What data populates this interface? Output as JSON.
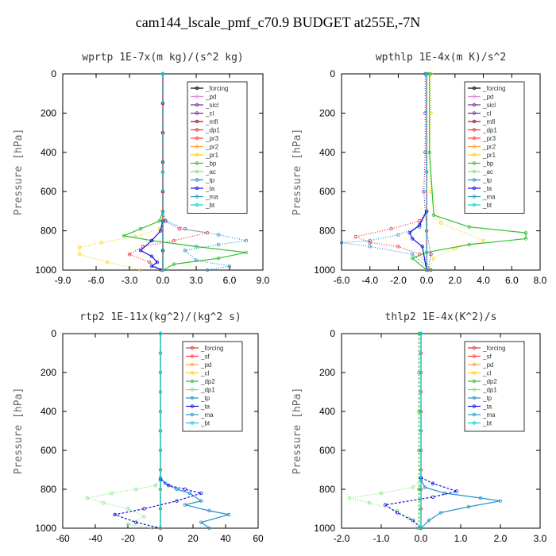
{
  "title": "cam144_lscale_pmf_c70.9  BUDGET at255E,-7N",
  "chart_data": [
    {
      "type": "line",
      "title": "wprtp  1E-7x(m kg)/(s^2 kg)",
      "ylabel": "Pressure [hPa]",
      "xlim": [
        -9,
        9
      ],
      "ylim": [
        1000,
        0
      ],
      "xticks": [
        "-9.0",
        "-6.0",
        "-3.0",
        "0.0",
        "3.0",
        "6.0",
        "9.0"
      ],
      "yticks": [
        "0",
        "200",
        "400",
        "600",
        "800",
        "1000"
      ],
      "legend_position": "top-right",
      "series": [
        {
          "name": "_forcing",
          "color": "#000000",
          "x": [
            0,
            0,
            0,
            0,
            0,
            0,
            0,
            0
          ],
          "y": [
            0,
            150,
            300,
            450,
            600,
            750,
            900,
            1000
          ]
        },
        {
          "name": "_pd",
          "color": "#e08ee0",
          "x": [
            0,
            0,
            0
          ],
          "y": [
            0,
            500,
            1000
          ]
        },
        {
          "name": "_sicl",
          "color": "#7030a0",
          "x": [
            0,
            0,
            0
          ],
          "y": [
            0,
            500,
            1000
          ]
        },
        {
          "name": "_cl",
          "color": "#6b2fa0",
          "x": [
            0,
            0,
            0
          ],
          "y": [
            0,
            500,
            1000
          ]
        },
        {
          "name": "_mfl",
          "color": "#a0003a",
          "x": [
            0,
            0,
            0
          ],
          "y": [
            0,
            500,
            1000
          ]
        },
        {
          "name": "_dp1",
          "color": "#e83030",
          "x": [
            0,
            0.2,
            1.5,
            4,
            1,
            -1.8,
            -3,
            -1.2,
            -0.2
          ],
          "y": [
            700,
            750,
            790,
            810,
            850,
            880,
            920,
            960,
            1000
          ]
        },
        {
          "name": "_pr3",
          "color": "#ff4040",
          "x": [
            0,
            0,
            0
          ],
          "y": [
            0,
            500,
            1000
          ]
        },
        {
          "name": "_pr2",
          "color": "#ffa040",
          "x": [
            0,
            0,
            0
          ],
          "y": [
            0,
            500,
            1000
          ]
        },
        {
          "name": "_pr1",
          "color": "#ffd000",
          "x": [
            0,
            -0.3,
            -2.5,
            -5.5,
            -7.5,
            -7.5,
            -5,
            -2
          ],
          "y": [
            750,
            790,
            830,
            860,
            885,
            920,
            960,
            1000
          ]
        },
        {
          "name": "_bp",
          "color": "#30c030",
          "x": [
            0,
            -0.3,
            -2,
            -3.5,
            -1,
            3,
            7.5,
            5,
            1,
            0
          ],
          "y": [
            700,
            750,
            790,
            825,
            850,
            880,
            910,
            940,
            970,
            1000
          ]
        },
        {
          "name": "_ac",
          "color": "#80e080",
          "x": [
            0,
            0,
            0
          ],
          "y": [
            0,
            500,
            1000
          ]
        },
        {
          "name": "_tp",
          "color": "#2090d0",
          "x": [
            0,
            0.3,
            2,
            5,
            7.5,
            5,
            2,
            3,
            6,
            4
          ],
          "y": [
            700,
            750,
            790,
            820,
            850,
            870,
            900,
            950,
            980,
            1000
          ]
        },
        {
          "name": "_ta",
          "color": "#1010e0",
          "x": [
            0,
            -0.2,
            -1,
            -2,
            -1,
            -0.5,
            -1,
            0
          ],
          "y": [
            750,
            800,
            850,
            900,
            930,
            960,
            980,
            1000
          ]
        },
        {
          "name": "_ma",
          "color": "#20a0c0",
          "x": [
            0,
            0,
            0
          ],
          "y": [
            0,
            500,
            1000
          ]
        },
        {
          "name": "_bt",
          "color": "#00d0e0",
          "x": [
            0,
            0,
            0
          ],
          "y": [
            0,
            500,
            1000
          ]
        }
      ]
    },
    {
      "type": "line",
      "title": "wpthlp  1E-4x(m K)/s^2",
      "ylabel": "Pressure [hPa]",
      "xlim": [
        -6,
        8
      ],
      "ylim": [
        1000,
        0
      ],
      "xticks": [
        "-6.0",
        "-4.0",
        "-2.0",
        "0.0",
        "2.0",
        "4.0",
        "6.0",
        "8.0"
      ],
      "yticks": [
        "0",
        "200",
        "400",
        "600",
        "800",
        "1000"
      ],
      "legend_position": "top-right",
      "series": [
        {
          "name": "_forcing",
          "color": "#000000",
          "x": [
            0,
            0,
            0
          ],
          "y": [
            0,
            500,
            1000
          ]
        },
        {
          "name": "_pd",
          "color": "#e08ee0",
          "x": [
            0,
            0,
            0
          ],
          "y": [
            0,
            500,
            1000
          ]
        },
        {
          "name": "_sicl",
          "color": "#7030a0",
          "x": [
            -0.1,
            -0.1,
            -0.1,
            -0.2,
            0,
            0.3,
            0.1
          ],
          "y": [
            0,
            200,
            400,
            600,
            800,
            920,
            1000
          ]
        },
        {
          "name": "_cl",
          "color": "#6b2fa0",
          "x": [
            0,
            0,
            0
          ],
          "y": [
            0,
            500,
            1000
          ]
        },
        {
          "name": "_mfl",
          "color": "#a0003a",
          "x": [
            0,
            0,
            0
          ],
          "y": [
            0,
            500,
            1000
          ]
        },
        {
          "name": "_dp1",
          "color": "#e83030",
          "x": [
            0,
            -0.5,
            -2.5,
            -5,
            -4,
            -2,
            -0.5,
            0.3
          ],
          "y": [
            700,
            750,
            790,
            830,
            860,
            880,
            920,
            1000
          ]
        },
        {
          "name": "_pr3",
          "color": "#ff4040",
          "x": [
            0,
            0,
            0
          ],
          "y": [
            0,
            500,
            1000
          ]
        },
        {
          "name": "_pr2",
          "color": "#ffa040",
          "x": [
            0,
            0,
            0
          ],
          "y": [
            0,
            500,
            1000
          ]
        },
        {
          "name": "_pr1",
          "color": "#ffd000",
          "x": [
            0.3,
            0.3,
            0.2,
            0.3,
            1,
            4,
            2,
            0.5,
            0.2
          ],
          "y": [
            0,
            200,
            400,
            600,
            760,
            850,
            890,
            940,
            1000
          ]
        },
        {
          "name": "_bp",
          "color": "#30c030",
          "x": [
            0.2,
            0.2,
            0.5,
            3,
            7,
            7,
            3,
            0,
            -1,
            0
          ],
          "y": [
            0,
            400,
            720,
            780,
            810,
            840,
            870,
            910,
            940,
            1000
          ]
        },
        {
          "name": "_ac",
          "color": "#80e080",
          "x": [
            0,
            0,
            0
          ],
          "y": [
            0,
            500,
            1000
          ]
        },
        {
          "name": "_tp",
          "color": "#2090d0",
          "x": [
            0,
            -0.5,
            -2,
            -4,
            -6,
            -4,
            -1,
            0.3
          ],
          "y": [
            700,
            780,
            820,
            850,
            860,
            880,
            920,
            1000
          ]
        },
        {
          "name": "_ta",
          "color": "#1010e0",
          "x": [
            0,
            -0.5,
            -1.2,
            -1,
            -0.3,
            0
          ],
          "y": [
            700,
            770,
            810,
            840,
            880,
            1000
          ]
        },
        {
          "name": "_ma",
          "color": "#20a0c0",
          "x": [
            0,
            0,
            0
          ],
          "y": [
            0,
            500,
            1000
          ]
        },
        {
          "name": "_bt",
          "color": "#00d0e0",
          "x": [
            0,
            0,
            0
          ],
          "y": [
            0,
            500,
            1000
          ]
        }
      ]
    },
    {
      "type": "line",
      "title": "rtp2  1E-11x(kg^2)/(kg^2 s)",
      "ylabel": "Pressure [hPa]",
      "xlim": [
        -60,
        60
      ],
      "ylim": [
        1000,
        0
      ],
      "xticks": [
        "-60",
        "-40",
        "-20",
        "0",
        "20",
        "40",
        "60"
      ],
      "yticks": [
        "0",
        "200",
        "400",
        "600",
        "800",
        "1000"
      ],
      "legend_position": "top-right",
      "series": [
        {
          "name": "_forcing",
          "color": "#e83030",
          "x": [
            0,
            0,
            0,
            0,
            0,
            0,
            0,
            0,
            0,
            0,
            0
          ],
          "y": [
            0,
            100,
            200,
            300,
            400,
            500,
            600,
            700,
            800,
            900,
            1000
          ]
        },
        {
          "name": "_sf",
          "color": "#ff4040",
          "x": [
            0,
            0,
            0
          ],
          "y": [
            0,
            500,
            1000
          ]
        },
        {
          "name": "_pd",
          "color": "#ffa040",
          "x": [
            0,
            0,
            0
          ],
          "y": [
            0,
            500,
            1000
          ]
        },
        {
          "name": "_cl",
          "color": "#ffd000",
          "x": [
            0,
            0,
            0
          ],
          "y": [
            0,
            500,
            1000
          ]
        },
        {
          "name": "_dp2",
          "color": "#30c030",
          "x": [
            0,
            0,
            0
          ],
          "y": [
            0,
            500,
            1000
          ]
        },
        {
          "name": "_dp1",
          "color": "#80e080",
          "x": [
            0,
            -3,
            -15,
            -30,
            -45,
            -35,
            -20,
            -10,
            -20,
            -5
          ],
          "y": [
            750,
            780,
            800,
            820,
            845,
            870,
            900,
            940,
            980,
            1000
          ]
        },
        {
          "name": "_tp",
          "color": "#2090d0",
          "x": [
            0,
            3,
            10,
            18,
            25,
            15,
            30,
            42,
            25,
            30
          ],
          "y": [
            740,
            770,
            800,
            820,
            860,
            880,
            910,
            930,
            970,
            1000
          ]
        },
        {
          "name": "_ta",
          "color": "#1010e0",
          "x": [
            0,
            5,
            15,
            25,
            10,
            -10,
            -28,
            -15,
            0
          ],
          "y": [
            750,
            780,
            800,
            820,
            860,
            900,
            930,
            970,
            1000
          ]
        },
        {
          "name": "_ma",
          "color": "#20a0c0",
          "x": [
            0,
            0,
            0
          ],
          "y": [
            0,
            500,
            1000
          ]
        },
        {
          "name": "_bt",
          "color": "#00d0e0",
          "x": [
            0,
            0,
            0
          ],
          "y": [
            0,
            500,
            1000
          ]
        }
      ]
    },
    {
      "type": "line",
      "title": "thlp2  1E-4x(K^2)/s",
      "ylabel": "Pressure [hPa]",
      "xlim": [
        -2,
        3
      ],
      "ylim": [
        1000,
        0
      ],
      "xticks": [
        "-2.0",
        "-1.0",
        "0.0",
        "1.0",
        "2.0",
        "3.0"
      ],
      "yticks": [
        "0",
        "200",
        "400",
        "600",
        "800",
        "1000"
      ],
      "legend_position": "top-right",
      "series": [
        {
          "name": "_forcing",
          "color": "#e83030",
          "x": [
            0,
            0,
            0,
            0,
            0,
            0,
            0,
            0,
            0,
            0,
            0
          ],
          "y": [
            0,
            100,
            200,
            300,
            400,
            500,
            600,
            700,
            800,
            900,
            1000
          ]
        },
        {
          "name": "_sf",
          "color": "#ff4040",
          "x": [
            0,
            0,
            0
          ],
          "y": [
            0,
            500,
            1000
          ]
        },
        {
          "name": "_pd",
          "color": "#ffa040",
          "x": [
            0,
            0,
            0
          ],
          "y": [
            0,
            500,
            1000
          ]
        },
        {
          "name": "_cl",
          "color": "#ffd000",
          "x": [
            0,
            0,
            0
          ],
          "y": [
            0,
            500,
            1000
          ]
        },
        {
          "name": "_dp2",
          "color": "#30c030",
          "x": [
            -0.05,
            -0.05,
            -0.05,
            -0.05,
            -0.05,
            -0.05
          ],
          "y": [
            0,
            200,
            400,
            600,
            800,
            1000
          ]
        },
        {
          "name": "_dp1",
          "color": "#80e080",
          "x": [
            0,
            -0.2,
            -1,
            -1.8,
            -1.3,
            -0.6,
            -0.3,
            -0.1
          ],
          "y": [
            750,
            790,
            820,
            845,
            870,
            910,
            950,
            1000
          ]
        },
        {
          "name": "_tp",
          "color": "#2090d0",
          "x": [
            0,
            0.1,
            0.6,
            1.5,
            2,
            1.2,
            0.5,
            0.2,
            0
          ],
          "y": [
            750,
            790,
            820,
            845,
            860,
            890,
            920,
            960,
            1000
          ]
        },
        {
          "name": "_ta",
          "color": "#1010e0",
          "x": [
            0,
            0.3,
            0.9,
            0.3,
            -0.9,
            -0.6,
            -0.2,
            0
          ],
          "y": [
            740,
            770,
            810,
            840,
            880,
            920,
            960,
            1000
          ]
        },
        {
          "name": "_ma",
          "color": "#20a0c0",
          "x": [
            0,
            0,
            0
          ],
          "y": [
            0,
            500,
            1000
          ]
        },
        {
          "name": "_bt",
          "color": "#00d0e0",
          "x": [
            0,
            0,
            0
          ],
          "y": [
            0,
            500,
            1000
          ]
        }
      ]
    }
  ]
}
